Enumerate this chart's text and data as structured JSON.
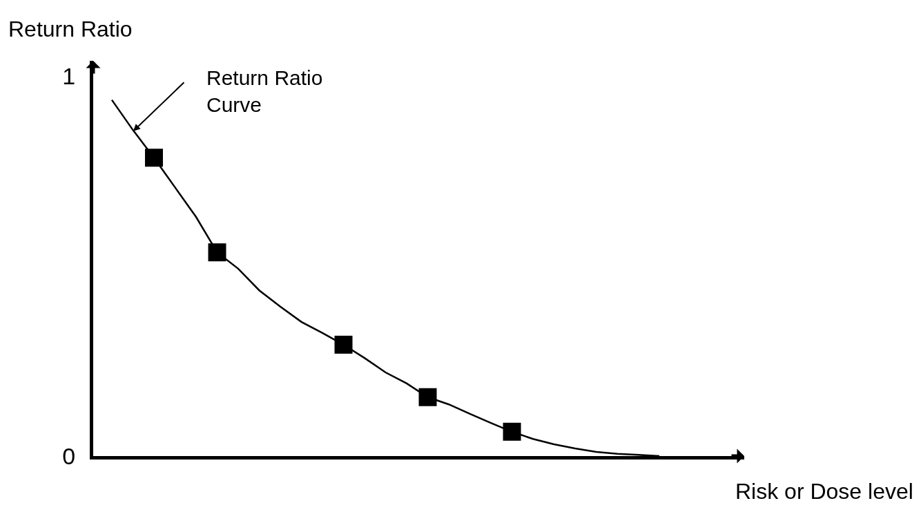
{
  "chart_data": {
    "type": "line",
    "xlabel": "Risk or Dose level",
    "ylabel": "Return Ratio",
    "categories": [
      null,
      null,
      null,
      null,
      null,
      null,
      null,
      null,
      null,
      null,
      null,
      null,
      null,
      null,
      null,
      null,
      null,
      null,
      null,
      null,
      null,
      null,
      null,
      null,
      null,
      null,
      null
    ],
    "ylim": [
      0,
      1.04
    ],
    "yticks": [
      0,
      1
    ],
    "tick_labels": "y",
    "grid": false,
    "annotations": [
      "Return Ratio\nCurve"
    ],
    "series": [
      {
        "type": "line",
        "color": "#000000",
        "marker": "none",
        "line_style": "solid",
        "values": [
          0.937,
          0.858,
          0.785,
          0.707,
          0.629,
          0.536,
          0.493,
          0.436,
          0.393,
          0.353,
          0.324,
          0.293,
          0.258,
          0.22,
          0.191,
          0.155,
          0.136,
          0.111,
          0.087,
          0.064,
          0.045,
          0.031,
          0.02,
          0.011,
          0.006,
          0.003,
          0
        ]
      },
      {
        "type": "scatter",
        "color": "#000000",
        "marker": "square",
        "values": [
          null,
          null,
          0.785,
          null,
          null,
          0.536,
          null,
          null,
          null,
          null,
          null,
          0.293,
          null,
          null,
          null,
          0.155,
          null,
          null,
          null,
          0.064,
          null,
          null,
          null,
          null,
          null,
          null,
          null
        ]
      }
    ]
  }
}
